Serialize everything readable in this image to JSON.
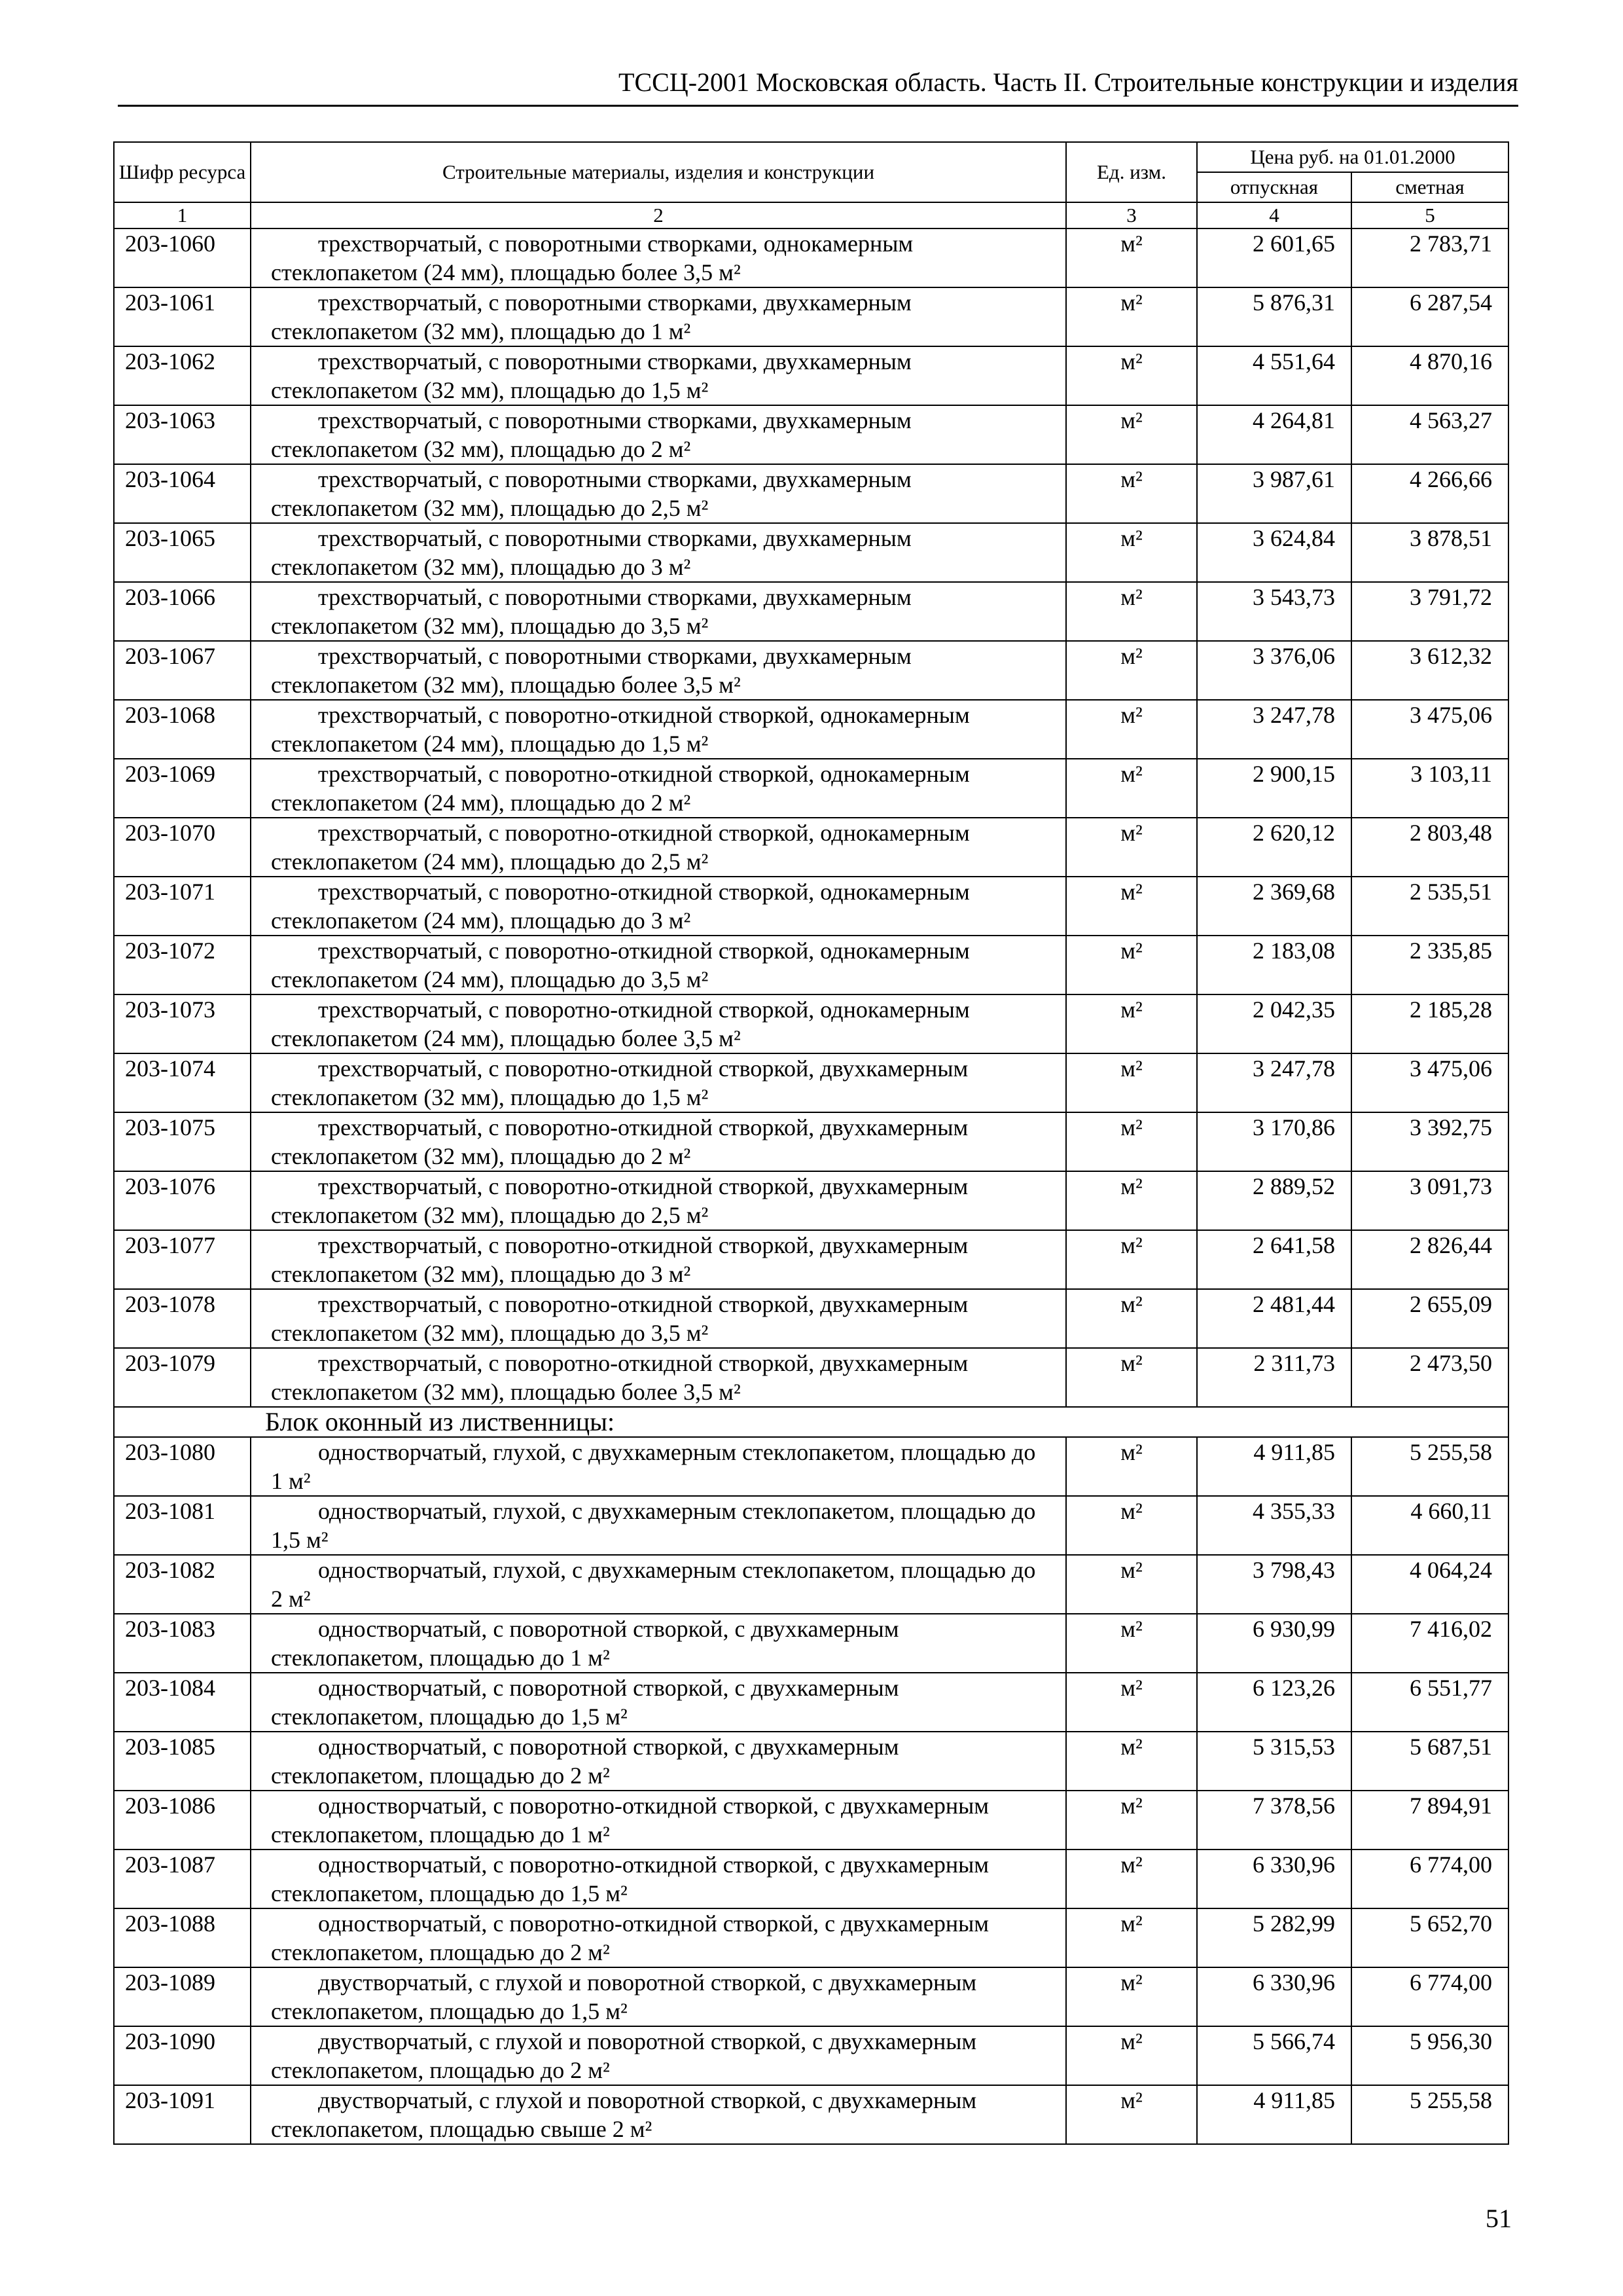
{
  "header": {
    "title": "ТССЦ-2001 Московская область. Часть II. Строительные конструкции и изделия"
  },
  "table": {
    "columns": {
      "code": "Шифр ресурса",
      "name": "Строительные материалы, изделия и конструкции",
      "unit": "Ед. изм.",
      "price_group": "Цена руб. на 01.01.2000",
      "price_release": "отпускная",
      "price_estimate": "сметная"
    },
    "column_numbers": [
      "1",
      "2",
      "3",
      "4",
      "5"
    ],
    "rows_a": [
      {
        "code": "203-1060",
        "name": "трехстворчатый, с поворотными створками, однокамерным стеклопакетом (24 мм), площадью более 3,5 м²",
        "unit": "м²",
        "release": "2 601,65",
        "estimate": "2 783,71"
      },
      {
        "code": "203-1061",
        "name": "трехстворчатый, с поворотными створками, двухкамерным стеклопакетом (32 мм), площадью до 1 м²",
        "unit": "м²",
        "release": "5 876,31",
        "estimate": "6 287,54"
      },
      {
        "code": "203-1062",
        "name": "трехстворчатый, с поворотными створками, двухкамерным стеклопакетом (32 мм), площадью до 1,5 м²",
        "unit": "м²",
        "release": "4 551,64",
        "estimate": "4 870,16"
      },
      {
        "code": "203-1063",
        "name": "трехстворчатый, с поворотными створками, двухкамерным стеклопакетом (32 мм), площадью до 2 м²",
        "unit": "м²",
        "release": "4 264,81",
        "estimate": "4 563,27"
      },
      {
        "code": "203-1064",
        "name": "трехстворчатый, с поворотными створками, двухкамерным стеклопакетом (32 мм), площадью до 2,5 м²",
        "unit": "м²",
        "release": "3 987,61",
        "estimate": "4 266,66"
      },
      {
        "code": "203-1065",
        "name": "трехстворчатый, с поворотными створками, двухкамерным стеклопакетом (32 мм), площадью до 3 м²",
        "unit": "м²",
        "release": "3 624,84",
        "estimate": "3 878,51"
      },
      {
        "code": "203-1066",
        "name": "трехстворчатый, с поворотными створками, двухкамерным стеклопакетом (32 мм), площадью до 3,5 м²",
        "unit": "м²",
        "release": "3 543,73",
        "estimate": "3 791,72"
      },
      {
        "code": "203-1067",
        "name": "трехстворчатый, с поворотными створками, двухкамерным стеклопакетом (32 мм), площадью более 3,5 м²",
        "unit": "м²",
        "release": "3 376,06",
        "estimate": "3 612,32"
      },
      {
        "code": "203-1068",
        "name": "трехстворчатый, с поворотно-откидной створкой, однокамерным стеклопакетом (24 мм), площадью до 1,5 м²",
        "unit": "м²",
        "release": "3 247,78",
        "estimate": "3 475,06"
      },
      {
        "code": "203-1069",
        "name": "трехстворчатый, с поворотно-откидной створкой, однокамерным стеклопакетом (24 мм), площадью до 2 м²",
        "unit": "м²",
        "release": "2 900,15",
        "estimate": "3 103,11"
      },
      {
        "code": "203-1070",
        "name": "трехстворчатый, с поворотно-откидной створкой, однокамерным стеклопакетом (24 мм), площадью до 2,5 м²",
        "unit": "м²",
        "release": "2 620,12",
        "estimate": "2 803,48"
      },
      {
        "code": "203-1071",
        "name": "трехстворчатый, с поворотно-откидной створкой, однокамерным стеклопакетом (24 мм), площадью до 3 м²",
        "unit": "м²",
        "release": "2 369,68",
        "estimate": "2 535,51"
      },
      {
        "code": "203-1072",
        "name": "трехстворчатый, с поворотно-откидной створкой, однокамерным стеклопакетом (24 мм), площадью до 3,5 м²",
        "unit": "м²",
        "release": "2 183,08",
        "estimate": "2 335,85"
      },
      {
        "code": "203-1073",
        "name": "трехстворчатый, с поворотно-откидной створкой, однокамерным стеклопакетом (24 мм), площадью более 3,5 м²",
        "unit": "м²",
        "release": "2 042,35",
        "estimate": "2 185,28"
      },
      {
        "code": "203-1074",
        "name": "трехстворчатый, с поворотно-откидной створкой, двухкамерным стеклопакетом (32 мм), площадью до 1,5 м²",
        "unit": "м²",
        "release": "3 247,78",
        "estimate": "3 475,06"
      },
      {
        "code": "203-1075",
        "name": "трехстворчатый, с поворотно-откидной створкой, двухкамерным стеклопакетом (32 мм), площадью до 2 м²",
        "unit": "м²",
        "release": "3 170,86",
        "estimate": "3 392,75"
      },
      {
        "code": "203-1076",
        "name": "трехстворчатый, с поворотно-откидной створкой, двухкамерным стеклопакетом (32 мм), площадью до 2,5 м²",
        "unit": "м²",
        "release": "2 889,52",
        "estimate": "3 091,73"
      },
      {
        "code": "203-1077",
        "name": "трехстворчатый, с поворотно-откидной створкой, двухкамерным стеклопакетом (32 мм), площадью до 3 м²",
        "unit": "м²",
        "release": "2 641,58",
        "estimate": "2 826,44"
      },
      {
        "code": "203-1078",
        "name": "трехстворчатый, с поворотно-откидной створкой, двухкамерным стеклопакетом (32 мм), площадью до 3,5 м²",
        "unit": "м²",
        "release": "2 481,44",
        "estimate": "2 655,09"
      },
      {
        "code": "203-1079",
        "name": "трехстворчатый, с поворотно-откидной створкой, двухкамерным стеклопакетом (32 мм), площадью более 3,5 м²",
        "unit": "м²",
        "release": "2 311,73",
        "estimate": "2 473,50"
      }
    ],
    "section_title": "Блок оконный из лиственницы:",
    "rows_b": [
      {
        "code": "203-1080",
        "name": "одностворчатый, глухой, с двухкамерным стеклопакетом, площадью до 1 м²",
        "unit": "м²",
        "release": "4 911,85",
        "estimate": "5 255,58"
      },
      {
        "code": "203-1081",
        "name": "одностворчатый, глухой, с двухкамерным стеклопакетом, площадью до 1,5 м²",
        "unit": "м²",
        "release": "4 355,33",
        "estimate": "4 660,11"
      },
      {
        "code": "203-1082",
        "name": "одностворчатый, глухой, с двухкамерным стеклопакетом, площадью до 2 м²",
        "unit": "м²",
        "release": "3 798,43",
        "estimate": "4 064,24"
      },
      {
        "code": "203-1083",
        "name": "одностворчатый, с поворотной створкой, с двухкамерным стеклопакетом, площадью до 1 м²",
        "unit": "м²",
        "release": "6 930,99",
        "estimate": "7 416,02"
      },
      {
        "code": "203-1084",
        "name": "одностворчатый, с поворотной створкой, с двухкамерным стеклопакетом, площадью до 1,5 м²",
        "unit": "м²",
        "release": "6 123,26",
        "estimate": "6 551,77"
      },
      {
        "code": "203-1085",
        "name": "одностворчатый, с поворотной створкой, с двухкамерным стеклопакетом, площадью до 2 м²",
        "unit": "м²",
        "release": "5 315,53",
        "estimate": "5 687,51"
      },
      {
        "code": "203-1086",
        "name": "одностворчатый, с поворотно-откидной створкой, с двухкамерным стеклопакетом, площадью до 1 м²",
        "unit": "м²",
        "release": "7 378,56",
        "estimate": "7 894,91"
      },
      {
        "code": "203-1087",
        "name": "одностворчатый, с поворотно-откидной створкой, с двухкамерным стеклопакетом, площадью до 1,5 м²",
        "unit": "м²",
        "release": "6 330,96",
        "estimate": "6 774,00"
      },
      {
        "code": "203-1088",
        "name": "одностворчатый, с поворотно-откидной створкой, с двухкамерным стеклопакетом, площадью до 2 м²",
        "unit": "м²",
        "release": "5 282,99",
        "estimate": "5 652,70"
      },
      {
        "code": "203-1089",
        "name": "двустворчатый, с глухой и поворотной створкой, с двухкамерным стеклопакетом, площадью до 1,5 м²",
        "unit": "м²",
        "release": "6 330,96",
        "estimate": "6 774,00"
      },
      {
        "code": "203-1090",
        "name": "двустворчатый, с глухой и поворотной створкой, с двухкамерным стеклопакетом, площадью до 2 м²",
        "unit": "м²",
        "release": "5 566,74",
        "estimate": "5 956,30"
      },
      {
        "code": "203-1091",
        "name": "двустворчатый, с глухой и поворотной створкой, с двухкамерным стеклопакетом, площадью свыше 2 м²",
        "unit": "м²",
        "release": "4 911,85",
        "estimate": "5 255,58"
      }
    ]
  },
  "footer": {
    "page_number": "51"
  }
}
